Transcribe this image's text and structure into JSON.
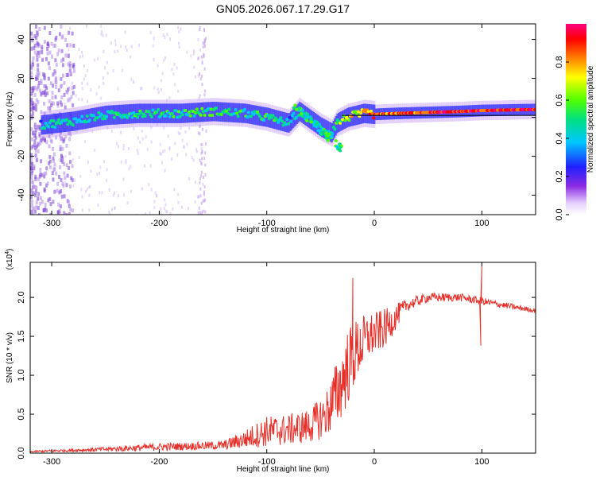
{
  "figure": {
    "title": "GN05.2026.067.17.29.G17"
  },
  "chart_data": [
    {
      "type": "heatmap",
      "title": "GN05.2026.067.17.29.G17",
      "xlabel": "Height of straight line (km)",
      "ylabel": "Frequency (Hz)",
      "xlim": [
        -320,
        150
      ],
      "ylim": [
        -50,
        48
      ],
      "x_ticks": [
        -300,
        -200,
        -100,
        0,
        100
      ],
      "x_tick_labels": [
        "-300",
        "-200",
        "-100",
        "0",
        "100"
      ],
      "y_ticks": [
        -40,
        -20,
        0,
        20,
        40
      ],
      "y_tick_labels": [
        "-40",
        "-20",
        "0",
        "20",
        "40"
      ],
      "colorbar": {
        "label": "Normalized spectral amplitude",
        "range": [
          0,
          1
        ],
        "ticks": [
          0,
          0.2,
          0.4,
          0.6,
          0.8
        ],
        "tick_labels": [
          "0.0",
          "0.2",
          "0.4",
          "0.6",
          "0.8"
        ],
        "colormap": "rainbow (purple-blue-cyan-green-yellow-red-magenta)"
      },
      "ridge": {
        "x": [
          -310,
          -280,
          -250,
          -220,
          -200,
          -180,
          -150,
          -120,
          -100,
          -80,
          -70,
          -60,
          -50,
          -40,
          -35,
          -25,
          -10,
          0,
          20,
          50,
          80,
          100,
          150
        ],
        "frequency": [
          -4,
          -2,
          1,
          2,
          2,
          2,
          3,
          2,
          0,
          -3,
          3,
          -1,
          -5,
          -8,
          -3,
          0,
          2,
          1.5,
          2,
          2.5,
          3,
          3.5,
          4
        ],
        "amplitude": [
          0.35,
          0.4,
          0.4,
          0.4,
          0.4,
          0.45,
          0.45,
          0.45,
          0.45,
          0.35,
          0.4,
          0.35,
          0.35,
          0.3,
          0.5,
          0.6,
          0.7,
          0.75,
          0.8,
          0.85,
          0.85,
          0.85,
          0.85
        ]
      },
      "grid": false
    },
    {
      "type": "line",
      "xlabel": "Height of straight line (km)",
      "ylabel": "SNR (10 * v/v)",
      "y_multiplier_label": "(x10^4)",
      "xlim": [
        -320,
        150
      ],
      "ylim": [
        0,
        2.45
      ],
      "x_ticks": [
        -300,
        -200,
        -100,
        0,
        100
      ],
      "x_tick_labels": [
        "-300",
        "-200",
        "-100",
        "0",
        "100"
      ],
      "y_ticks": [
        0,
        0.5,
        1.0,
        1.5,
        2.0
      ],
      "y_tick_labels": [
        "0.0",
        "0.5",
        "1.0",
        "1.5",
        "2.0"
      ],
      "series": [
        {
          "color": "#e8302a",
          "x": [
            -320,
            -250,
            -200,
            -170,
            -140,
            -120,
            -100,
            -80,
            -60,
            -45,
            -35,
            -25,
            -15,
            -5,
            10,
            30,
            50,
            80,
            100,
            120,
            150
          ],
          "values": [
            0.02,
            0.05,
            0.08,
            0.09,
            0.1,
            0.18,
            0.28,
            0.3,
            0.35,
            0.5,
            0.75,
            1.1,
            1.35,
            1.5,
            1.6,
            1.9,
            2.0,
            2.0,
            1.95,
            1.9,
            1.83
          ],
          "noise": [
            0.01,
            0.03,
            0.05,
            0.05,
            0.06,
            0.12,
            0.2,
            0.2,
            0.22,
            0.3,
            0.45,
            0.5,
            0.4,
            0.3,
            0.25,
            0.08,
            0.06,
            0.05,
            0.05,
            0.04,
            0.03
          ]
        }
      ],
      "spikes": [
        {
          "x": -20,
          "value": 2.25
        },
        {
          "x": 100,
          "value": 2.4
        },
        {
          "x": 99,
          "value": 1.38
        }
      ],
      "grid": false
    }
  ]
}
